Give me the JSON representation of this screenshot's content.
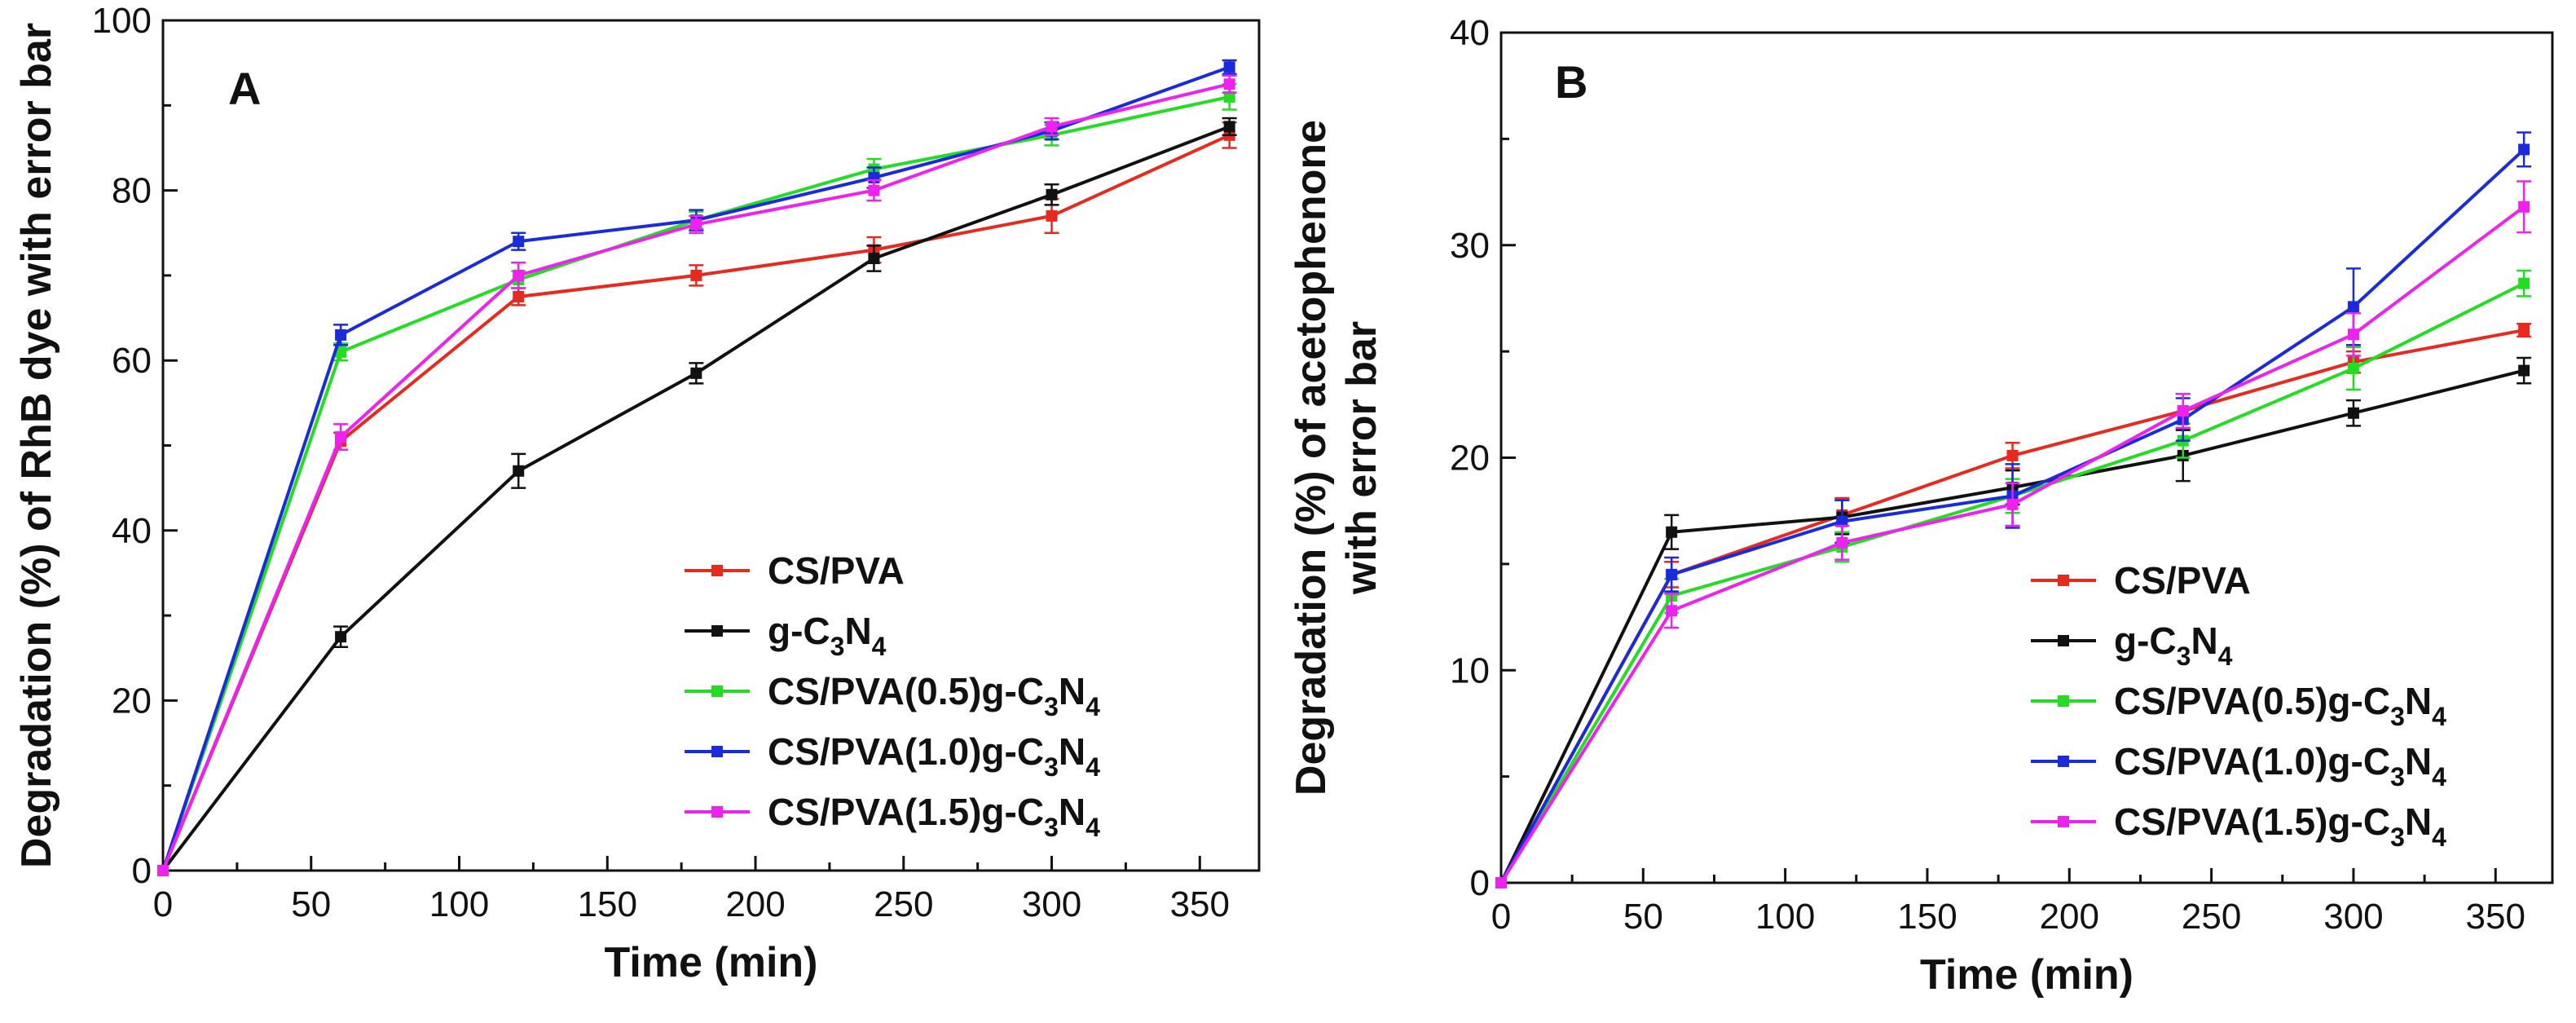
{
  "chart_data": [
    {
      "type": "line",
      "panel_label": "A",
      "title": "",
      "xlabel": "Time (min)",
      "ylabel": "Degradation (%) of RhB dye with error bar",
      "xlim": [
        0,
        370
      ],
      "ylim": [
        0,
        100
      ],
      "x_ticks": [
        0,
        50,
        100,
        150,
        200,
        250,
        300,
        350
      ],
      "y_ticks": [
        0,
        20,
        40,
        60,
        80,
        100
      ],
      "x": [
        0,
        60,
        120,
        180,
        240,
        300,
        360
      ],
      "legend_position": "bottom-right",
      "series": [
        {
          "name": "CS/PVA",
          "base": "CS/PVA",
          "sub": "",
          "color": "#e8291f",
          "values": [
            0,
            50.5,
            67.5,
            70,
            73,
            77,
            86.5
          ],
          "errors": [
            0,
            1.0,
            1.0,
            1.2,
            1.5,
            2.0,
            1.5
          ]
        },
        {
          "name": "g-C3N4",
          "base": "g-C",
          "sub": "3|N|4",
          "color": "#111111",
          "values": [
            0,
            27.5,
            47,
            58.5,
            72,
            79.5,
            87.5
          ],
          "errors": [
            0,
            1.2,
            2.0,
            1.2,
            1.5,
            1.2,
            1.0
          ]
        },
        {
          "name": "CS/PVA(0.5)g-C3N4",
          "base": "CS/PVA(0.5)g-C",
          "sub": "3|N|4",
          "color": "#22dd22",
          "values": [
            0,
            61,
            69.5,
            76.5,
            82.5,
            86.5,
            91
          ],
          "errors": [
            0,
            1.0,
            1.0,
            1.0,
            1.2,
            1.2,
            1.5
          ]
        },
        {
          "name": "CS/PVA(1.0)g-C3N4",
          "base": "CS/PVA(1.0)g-C",
          "sub": "3|N|4",
          "color": "#1a2bdb",
          "values": [
            0,
            63,
            74,
            76.5,
            81.5,
            87,
            94.5
          ],
          "errors": [
            0,
            1.2,
            1.0,
            1.2,
            1.2,
            1.0,
            0.8
          ]
        },
        {
          "name": "CS/PVA(1.5)g-C3N4",
          "base": "CS/PVA(1.5)g-C",
          "sub": "3|N|4",
          "color": "#ee22ee",
          "values": [
            0,
            51,
            70,
            76,
            80,
            87.5,
            92.5
          ],
          "errors": [
            0,
            1.5,
            1.5,
            1.0,
            1.2,
            1.0,
            1.0
          ]
        }
      ]
    },
    {
      "type": "line",
      "panel_label": "B",
      "title": "",
      "xlabel": "Time (min)",
      "ylabel_lines": [
        "Degradation (%) of acetophenone",
        "with error bar"
      ],
      "xlim": [
        0,
        370
      ],
      "ylim": [
        0,
        40
      ],
      "x_ticks": [
        0,
        50,
        100,
        150,
        200,
        250,
        300,
        350
      ],
      "y_ticks": [
        0,
        10,
        20,
        30,
        40
      ],
      "x": [
        0,
        60,
        120,
        180,
        240,
        300,
        360
      ],
      "legend_position": "bottom-right",
      "series": [
        {
          "name": "CS/PVA",
          "base": "CS/PVA",
          "sub": "",
          "color": "#e8291f",
          "values": [
            0,
            14.5,
            17.3,
            20.1,
            22.2,
            24.5,
            26
          ],
          "errors": [
            0,
            0.6,
            0.8,
            0.6,
            0.8,
            0.5,
            0.3
          ]
        },
        {
          "name": "g-C3N4",
          "base": "g-C",
          "sub": "3|N|4",
          "color": "#111111",
          "values": [
            0,
            16.5,
            17.2,
            18.6,
            20.1,
            22.1,
            24.1
          ],
          "errors": [
            0,
            0.8,
            0.8,
            0.8,
            1.2,
            0.6,
            0.6
          ]
        },
        {
          "name": "CS/PVA(0.5)g-C3N4",
          "base": "CS/PVA(0.5)g-C",
          "sub": "3|N|4",
          "color": "#22dd22",
          "values": [
            0,
            13.5,
            15.8,
            18.2,
            20.8,
            24.2,
            28.2
          ],
          "errors": [
            0,
            0.8,
            0.7,
            0.8,
            0.8,
            1.0,
            0.6
          ]
        },
        {
          "name": "CS/PVA(1.0)g-C3N4",
          "base": "CS/PVA(1.0)g-C",
          "sub": "3|N|4",
          "color": "#1a2bdb",
          "values": [
            0,
            14.5,
            17,
            18.2,
            21.8,
            27.1,
            34.5
          ],
          "errors": [
            0,
            0.8,
            1.0,
            1.5,
            1.0,
            1.8,
            0.8
          ]
        },
        {
          "name": "CS/PVA(1.5)g-C3N4",
          "base": "CS/PVA(1.5)g-C",
          "sub": "3|N|4",
          "color": "#ee22ee",
          "values": [
            0,
            12.8,
            16,
            17.8,
            22.2,
            25.8,
            31.8
          ],
          "errors": [
            0,
            0.8,
            0.8,
            1.0,
            0.8,
            1.0,
            1.2
          ]
        }
      ]
    }
  ]
}
